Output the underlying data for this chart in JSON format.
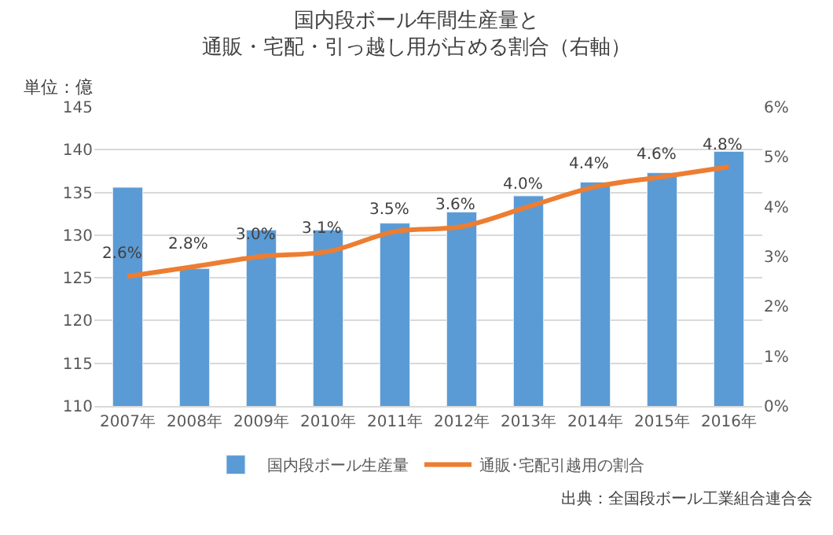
{
  "chart_data": {
    "type": "bar",
    "title": "国内段ボール年間生産量と通販・宅配・引っ越し用が占める割合（右軸）",
    "ylabel": "単位：億",
    "categories": [
      "2007年",
      "2008年",
      "2009年",
      "2010年",
      "2011年",
      "2012年",
      "2013年",
      "2014年",
      "2015年",
      "2016年"
    ],
    "series": [
      {
        "name": "国内段ボール生産量",
        "color": "#5b9bd5",
        "values": [
          135.6,
          126.1,
          130.6,
          130.6,
          131.4,
          132.7,
          134.6,
          136.2,
          137.3,
          139.8
        ]
      },
      {
        "name": "通販･宅配引越用の割合",
        "type": "line",
        "axis": "y2",
        "color": "#ed7d31",
        "marker": "none",
        "values": [
          2.6,
          2.8,
          3.0,
          3.1,
          3.5,
          3.6,
          4.0,
          4.4,
          4.6,
          4.8
        ],
        "value_labels": [
          "2.6%",
          "2.8%",
          "3.0%",
          "3.1%",
          "3.5%",
          "3.6%",
          "4.0%",
          "4.4%",
          "4.6%",
          "4.8%"
        ]
      }
    ],
    "ylim": [
      110,
      145
    ],
    "yticks": [
      110,
      115,
      120,
      125,
      130,
      135,
      140,
      145
    ],
    "y2lim": [
      0,
      6
    ],
    "y2ticks": [
      {
        "value": 0,
        "label": "0%"
      },
      {
        "value": 1,
        "label": "1%"
      },
      {
        "value": 2,
        "label": "2%"
      },
      {
        "value": 3,
        "label": "3%"
      },
      {
        "value": 4,
        "label": "4%"
      },
      {
        "value": 5,
        "label": "5%"
      },
      {
        "value": 6,
        "label": "6%"
      }
    ],
    "grid": "y",
    "legend": "bottom",
    "annotations": [
      "出典：全国段ボール工業組合連合会"
    ]
  }
}
